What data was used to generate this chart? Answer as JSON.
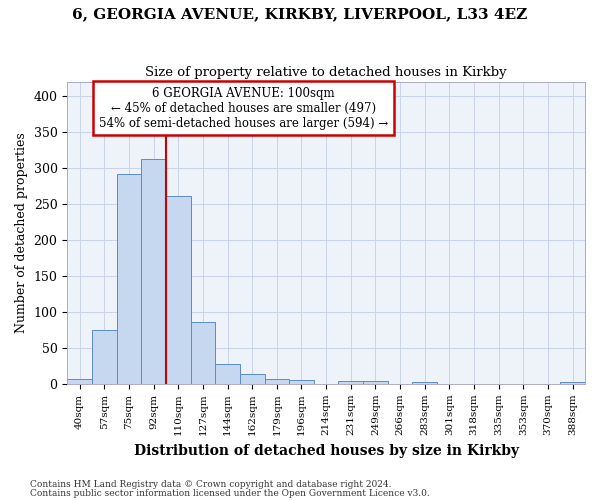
{
  "title1": "6, GEORGIA AVENUE, KIRKBY, LIVERPOOL, L33 4EZ",
  "title2": "Size of property relative to detached houses in Kirkby",
  "xlabel": "Distribution of detached houses by size in Kirkby",
  "ylabel": "Number of detached properties",
  "categories": [
    "40sqm",
    "57sqm",
    "75sqm",
    "92sqm",
    "110sqm",
    "127sqm",
    "144sqm",
    "162sqm",
    "179sqm",
    "196sqm",
    "214sqm",
    "231sqm",
    "249sqm",
    "266sqm",
    "283sqm",
    "301sqm",
    "318sqm",
    "335sqm",
    "353sqm",
    "370sqm",
    "388sqm"
  ],
  "values": [
    7,
    75,
    292,
    313,
    262,
    86,
    27,
    14,
    7,
    5,
    0,
    4,
    4,
    0,
    3,
    0,
    0,
    0,
    0,
    0,
    3
  ],
  "bar_color": "#c5d8f0",
  "bar_edge_color": "#5b8cc8",
  "marker_label": "6 GEORGIA AVENUE: 100sqm",
  "pct_smaller": "45% of detached houses are smaller (497)",
  "pct_larger": "54% of semi-detached houses are larger (594)",
  "annotation_box_color": "#ffffff",
  "annotation_box_edge_color": "#cc0000",
  "vline_color": "#cc0000",
  "grid_color": "#c8d4e8",
  "footer1": "Contains HM Land Registry data © Crown copyright and database right 2024.",
  "footer2": "Contains public sector information licensed under the Open Government Licence v3.0.",
  "ylim": [
    0,
    420
  ],
  "yticks": [
    0,
    50,
    100,
    150,
    200,
    250,
    300,
    350,
    400
  ],
  "bg_color": "#eef2f9",
  "vline_x": 3.5
}
